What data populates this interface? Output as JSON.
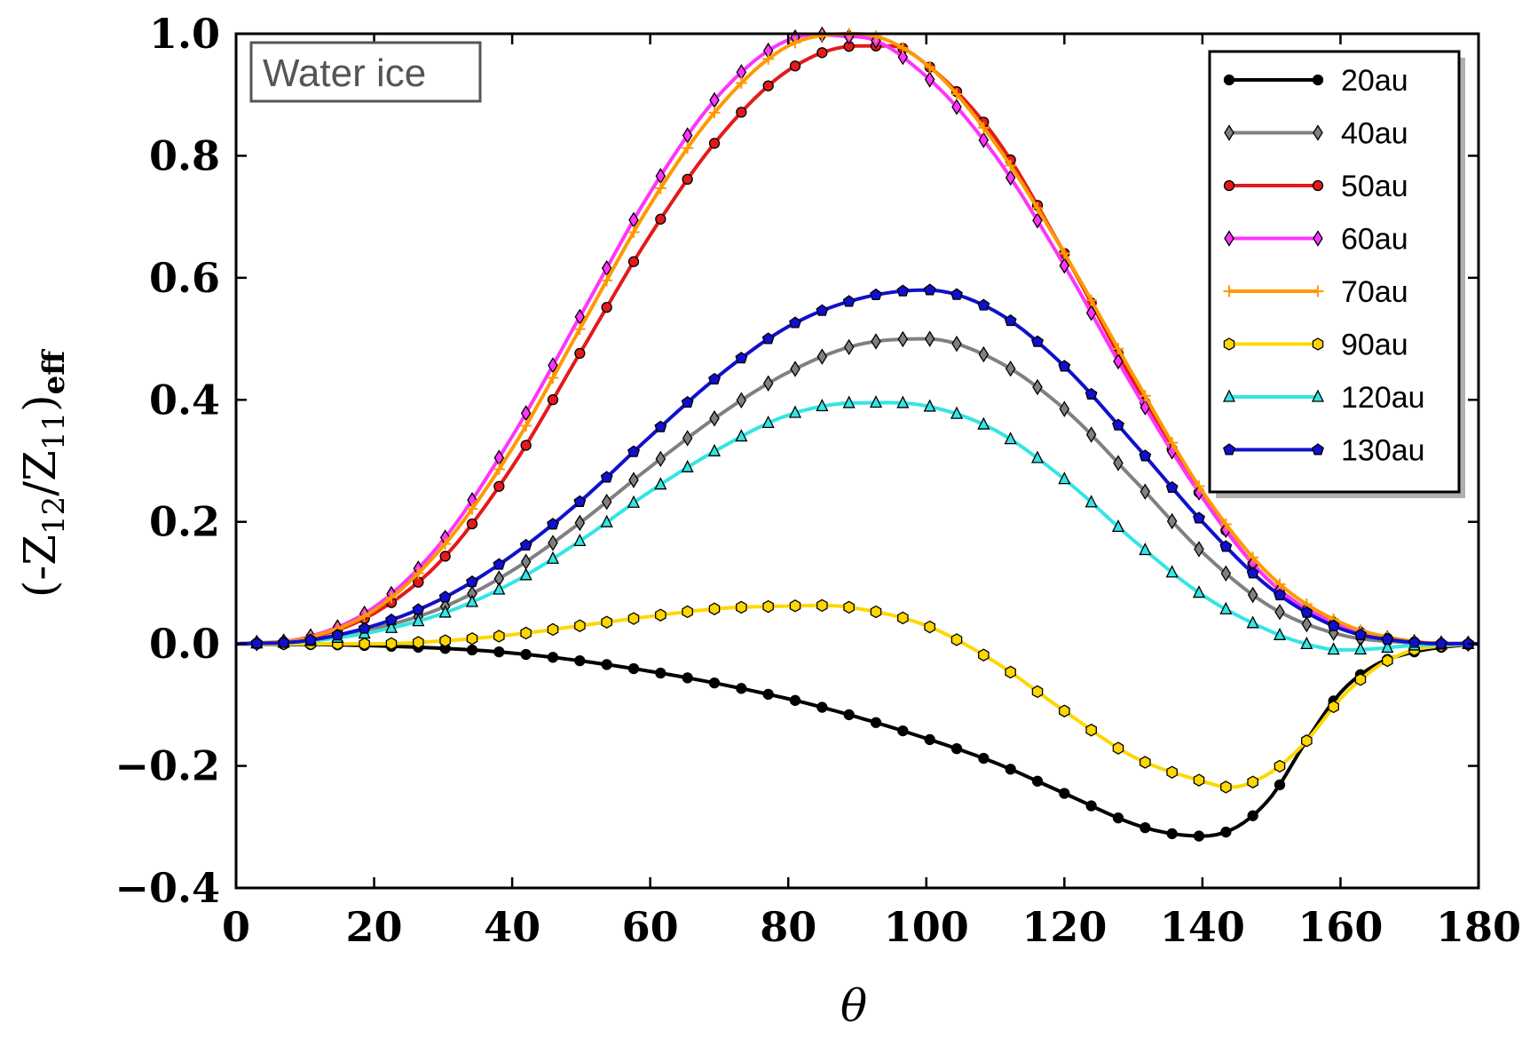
{
  "chart_data": {
    "type": "line",
    "title": "",
    "annotation": "Water ice",
    "xlabel": "θ",
    "ylabel": "(-Z12/Z11)eff",
    "ylabel_parts": {
      "open": "(-Z",
      "sub1": "12",
      "mid": "/Z",
      "sub2": "11",
      "close": ")",
      "sub3": "eff"
    },
    "xlim": [
      0,
      180
    ],
    "ylim": [
      -0.4,
      1.0
    ],
    "xticks": [
      0,
      20,
      40,
      60,
      80,
      100,
      120,
      140,
      160,
      180
    ],
    "yticks": [
      -0.4,
      -0.2,
      0.0,
      0.2,
      0.4,
      0.6,
      0.8,
      1.0
    ],
    "xtick_labels": [
      "0",
      "20",
      "40",
      "60",
      "80",
      "100",
      "120",
      "140",
      "160",
      "180"
    ],
    "ytick_labels": [
      "−0.4",
      "−0.2",
      "0.0",
      "0.2",
      "0.4",
      "0.6",
      "0.8",
      "1.0"
    ],
    "grid": false,
    "legend_position": "top-right",
    "series": [
      {
        "name": "20au",
        "color": "#000000",
        "marker": "circle",
        "x": [
          0,
          20,
          40,
          60,
          80,
          90,
          100,
          110,
          120,
          130,
          135,
          140,
          145,
          150,
          155,
          160,
          165,
          170,
          175,
          180
        ],
        "y": [
          0,
          -0.003,
          -0.015,
          -0.045,
          -0.09,
          -0.12,
          -0.155,
          -0.195,
          -0.245,
          -0.295,
          -0.31,
          -0.315,
          -0.3,
          -0.25,
          -0.16,
          -0.08,
          -0.035,
          -0.015,
          -0.005,
          0
        ]
      },
      {
        "name": "40au",
        "color": "#808080",
        "marker": "diamond",
        "x": [
          0,
          10,
          20,
          30,
          40,
          50,
          60,
          70,
          80,
          90,
          100,
          110,
          120,
          130,
          140,
          150,
          160,
          170,
          180
        ],
        "y": [
          0,
          0.005,
          0.025,
          0.06,
          0.12,
          0.2,
          0.29,
          0.375,
          0.445,
          0.49,
          0.5,
          0.465,
          0.385,
          0.27,
          0.15,
          0.06,
          0.015,
          0.002,
          0
        ]
      },
      {
        "name": "50au",
        "color": "#e31a1c",
        "marker": "circle",
        "x": [
          0,
          10,
          20,
          30,
          40,
          50,
          60,
          70,
          80,
          90,
          95,
          100,
          110,
          120,
          130,
          140,
          150,
          160,
          170,
          180
        ],
        "y": [
          0,
          0.008,
          0.05,
          0.14,
          0.29,
          0.48,
          0.67,
          0.83,
          0.94,
          0.98,
          0.98,
          0.95,
          0.83,
          0.64,
          0.43,
          0.24,
          0.1,
          0.03,
          0.004,
          0
        ]
      },
      {
        "name": "60au",
        "color": "#ff33ff",
        "marker": "diamond",
        "x": [
          0,
          10,
          20,
          30,
          40,
          50,
          60,
          70,
          80,
          90,
          100,
          110,
          120,
          130,
          140,
          150,
          160,
          170,
          180
        ],
        "y": [
          0,
          0.01,
          0.06,
          0.17,
          0.34,
          0.54,
          0.74,
          0.9,
          0.99,
          0.995,
          0.93,
          0.8,
          0.62,
          0.42,
          0.24,
          0.1,
          0.03,
          0.004,
          0
        ]
      },
      {
        "name": "70au",
        "color": "#ff9900",
        "marker": "plus",
        "x": [
          0,
          10,
          20,
          30,
          40,
          50,
          60,
          70,
          80,
          90,
          100,
          110,
          120,
          130,
          140,
          150,
          160,
          170,
          180
        ],
        "y": [
          0,
          0.009,
          0.055,
          0.16,
          0.32,
          0.52,
          0.72,
          0.88,
          0.98,
          1.0,
          0.95,
          0.82,
          0.64,
          0.44,
          0.25,
          0.11,
          0.035,
          0.005,
          0
        ]
      },
      {
        "name": "90au",
        "color": "#ffd700",
        "marker": "hexagon",
        "x": [
          0,
          10,
          20,
          30,
          40,
          50,
          60,
          70,
          80,
          85,
          90,
          100,
          110,
          120,
          130,
          140,
          144,
          150,
          155,
          160,
          165,
          170,
          175,
          180
        ],
        "y": [
          0,
          0.0,
          0.0,
          0.005,
          0.015,
          0.03,
          0.045,
          0.058,
          0.062,
          0.063,
          0.058,
          0.03,
          -0.03,
          -0.11,
          -0.185,
          -0.225,
          -0.235,
          -0.21,
          -0.16,
          -0.09,
          -0.04,
          -0.012,
          -0.003,
          0
        ]
      },
      {
        "name": "120au",
        "color": "#33e5e5",
        "marker": "triangle",
        "x": [
          0,
          10,
          20,
          30,
          40,
          50,
          60,
          70,
          80,
          90,
          100,
          110,
          120,
          130,
          140,
          150,
          155,
          160,
          165,
          170,
          180
        ],
        "y": [
          0,
          0.004,
          0.02,
          0.05,
          0.1,
          0.17,
          0.25,
          0.32,
          0.375,
          0.395,
          0.39,
          0.35,
          0.27,
          0.17,
          0.08,
          0.02,
          0.0,
          -0.01,
          -0.008,
          -0.003,
          0
        ]
      },
      {
        "name": "130au",
        "color": "#1010cc",
        "marker": "pentagon",
        "x": [
          0,
          10,
          20,
          30,
          40,
          50,
          60,
          70,
          80,
          90,
          100,
          110,
          120,
          130,
          140,
          150,
          160,
          170,
          180
        ],
        "y": [
          0,
          0.005,
          0.03,
          0.075,
          0.145,
          0.235,
          0.34,
          0.44,
          0.52,
          0.565,
          0.58,
          0.545,
          0.455,
          0.33,
          0.2,
          0.09,
          0.025,
          0.003,
          0
        ]
      }
    ]
  }
}
